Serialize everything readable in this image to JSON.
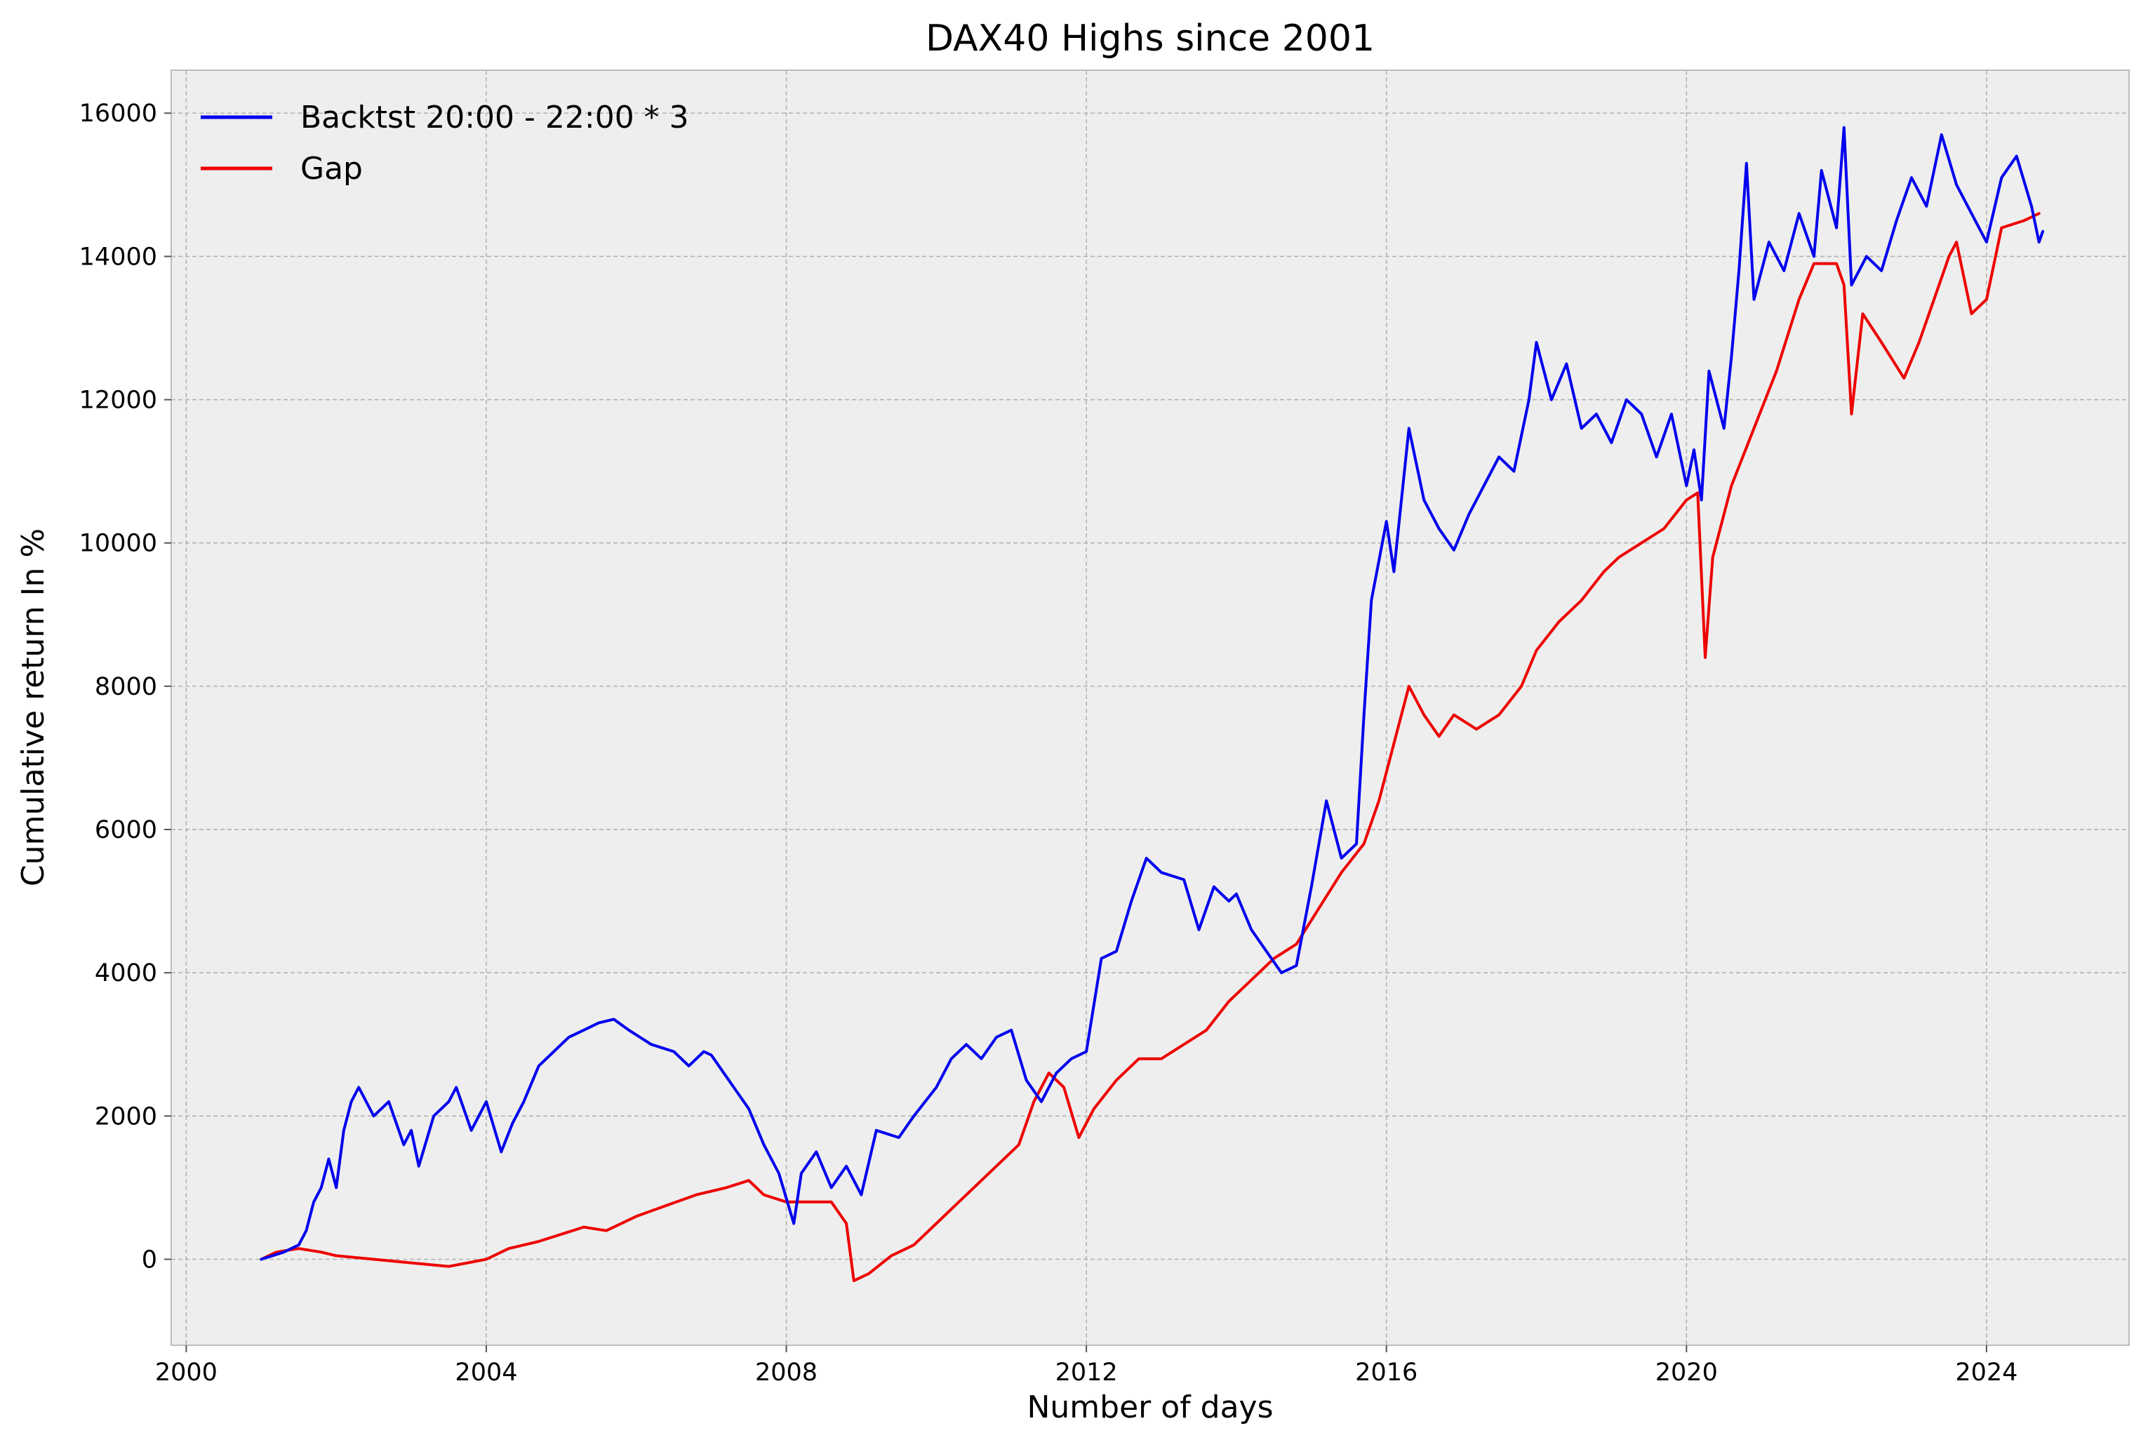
{
  "chart_data": {
    "type": "line",
    "title": "DAX40 Highs since 2001",
    "xlabel": "Number of days",
    "ylabel": "Cumulative return In %",
    "xlim": [
      1999.8,
      2025.9
    ],
    "ylim": [
      -1200,
      16600
    ],
    "x_ticks": [
      2000,
      2004,
      2008,
      2012,
      2016,
      2020,
      2024
    ],
    "x_tick_labels": [
      "2000",
      "2004",
      "2008",
      "2012",
      "2016",
      "2020",
      "2024"
    ],
    "y_ticks": [
      0,
      2000,
      4000,
      6000,
      8000,
      10000,
      12000,
      14000,
      16000
    ],
    "y_tick_labels": [
      "0",
      "2000",
      "4000",
      "6000",
      "8000",
      "10000",
      "12000",
      "14000",
      "16000"
    ],
    "grid": true,
    "legend_position": "top-left",
    "series": [
      {
        "name": "Backtst 20:00 - 22:00 * 3",
        "color": "#0000ee",
        "points": [
          [
            2001.0,
            0
          ],
          [
            2001.3,
            100
          ],
          [
            2001.5,
            200
          ],
          [
            2001.6,
            400
          ],
          [
            2001.7,
            800
          ],
          [
            2001.8,
            1000
          ],
          [
            2001.9,
            1400
          ],
          [
            2002.0,
            1000
          ],
          [
            2002.1,
            1800
          ],
          [
            2002.2,
            2200
          ],
          [
            2002.3,
            2400
          ],
          [
            2002.5,
            2000
          ],
          [
            2002.7,
            2200
          ],
          [
            2002.9,
            1600
          ],
          [
            2003.0,
            1800
          ],
          [
            2003.1,
            1300
          ],
          [
            2003.3,
            2000
          ],
          [
            2003.5,
            2200
          ],
          [
            2003.6,
            2400
          ],
          [
            2003.8,
            1800
          ],
          [
            2004.0,
            2200
          ],
          [
            2004.2,
            1500
          ],
          [
            2004.35,
            1900
          ],
          [
            2004.5,
            2200
          ],
          [
            2004.7,
            2700
          ],
          [
            2004.9,
            2900
          ],
          [
            2005.1,
            3100
          ],
          [
            2005.3,
            3200
          ],
          [
            2005.5,
            3300
          ],
          [
            2005.7,
            3350
          ],
          [
            2005.9,
            3200
          ],
          [
            2006.2,
            3000
          ],
          [
            2006.5,
            2900
          ],
          [
            2006.7,
            2700
          ],
          [
            2006.9,
            2900
          ],
          [
            2007.0,
            2850
          ],
          [
            2007.3,
            2400
          ],
          [
            2007.5,
            2100
          ],
          [
            2007.7,
            1600
          ],
          [
            2007.9,
            1200
          ],
          [
            2008.1,
            500
          ],
          [
            2008.2,
            1200
          ],
          [
            2008.4,
            1500
          ],
          [
            2008.6,
            1000
          ],
          [
            2008.8,
            1300
          ],
          [
            2009.0,
            900
          ],
          [
            2009.2,
            1800
          ],
          [
            2009.5,
            1700
          ],
          [
            2009.7,
            2000
          ],
          [
            2010.0,
            2400
          ],
          [
            2010.2,
            2800
          ],
          [
            2010.4,
            3000
          ],
          [
            2010.6,
            2800
          ],
          [
            2010.8,
            3100
          ],
          [
            2011.0,
            3200
          ],
          [
            2011.2,
            2500
          ],
          [
            2011.4,
            2200
          ],
          [
            2011.6,
            2600
          ],
          [
            2011.8,
            2800
          ],
          [
            2012.0,
            2900
          ],
          [
            2012.2,
            4200
          ],
          [
            2012.4,
            4300
          ],
          [
            2012.6,
            5000
          ],
          [
            2012.8,
            5600
          ],
          [
            2013.0,
            5400
          ],
          [
            2013.3,
            5300
          ],
          [
            2013.5,
            4600
          ],
          [
            2013.7,
            5200
          ],
          [
            2013.9,
            5000
          ],
          [
            2014.0,
            5100
          ],
          [
            2014.2,
            4600
          ],
          [
            2014.4,
            4300
          ],
          [
            2014.6,
            4000
          ],
          [
            2014.8,
            4100
          ],
          [
            2015.0,
            5200
          ],
          [
            2015.2,
            6400
          ],
          [
            2015.4,
            5600
          ],
          [
            2015.6,
            5800
          ],
          [
            2015.7,
            7600
          ],
          [
            2015.8,
            9200
          ],
          [
            2016.0,
            10300
          ],
          [
            2016.1,
            9600
          ],
          [
            2016.3,
            11600
          ],
          [
            2016.5,
            10600
          ],
          [
            2016.7,
            10200
          ],
          [
            2016.9,
            9900
          ],
          [
            2017.1,
            10400
          ],
          [
            2017.3,
            10800
          ],
          [
            2017.5,
            11200
          ],
          [
            2017.7,
            11000
          ],
          [
            2017.9,
            12000
          ],
          [
            2018.0,
            12800
          ],
          [
            2018.2,
            12000
          ],
          [
            2018.4,
            12500
          ],
          [
            2018.6,
            11600
          ],
          [
            2018.8,
            11800
          ],
          [
            2019.0,
            11400
          ],
          [
            2019.2,
            12000
          ],
          [
            2019.4,
            11800
          ],
          [
            2019.6,
            11200
          ],
          [
            2019.8,
            11800
          ],
          [
            2020.0,
            10800
          ],
          [
            2020.1,
            11300
          ],
          [
            2020.2,
            10600
          ],
          [
            2020.3,
            12400
          ],
          [
            2020.5,
            11600
          ],
          [
            2020.6,
            12600
          ],
          [
            2020.7,
            13800
          ],
          [
            2020.8,
            15300
          ],
          [
            2020.9,
            13400
          ],
          [
            2021.1,
            14200
          ],
          [
            2021.3,
            13800
          ],
          [
            2021.5,
            14600
          ],
          [
            2021.7,
            14000
          ],
          [
            2021.8,
            15200
          ],
          [
            2022.0,
            14400
          ],
          [
            2022.1,
            15800
          ],
          [
            2022.2,
            13600
          ],
          [
            2022.4,
            14000
          ],
          [
            2022.6,
            13800
          ],
          [
            2022.8,
            14500
          ],
          [
            2023.0,
            15100
          ],
          [
            2023.2,
            14700
          ],
          [
            2023.4,
            15700
          ],
          [
            2023.6,
            15000
          ],
          [
            2023.8,
            14600
          ],
          [
            2024.0,
            14200
          ],
          [
            2024.2,
            15100
          ],
          [
            2024.4,
            15400
          ],
          [
            2024.6,
            14700
          ],
          [
            2024.7,
            14200
          ],
          [
            2024.75,
            14350
          ]
        ]
      },
      {
        "name": "Gap",
        "color": "#ee0000",
        "points": [
          [
            2001.0,
            0
          ],
          [
            2001.2,
            100
          ],
          [
            2001.5,
            150
          ],
          [
            2001.8,
            100
          ],
          [
            2002.0,
            50
          ],
          [
            2002.5,
            0
          ],
          [
            2003.0,
            -50
          ],
          [
            2003.5,
            -100
          ],
          [
            2004.0,
            0
          ],
          [
            2004.3,
            150
          ],
          [
            2004.7,
            250
          ],
          [
            2005.0,
            350
          ],
          [
            2005.3,
            450
          ],
          [
            2005.6,
            400
          ],
          [
            2006.0,
            600
          ],
          [
            2006.4,
            750
          ],
          [
            2006.8,
            900
          ],
          [
            2007.2,
            1000
          ],
          [
            2007.5,
            1100
          ],
          [
            2007.7,
            900
          ],
          [
            2008.0,
            800
          ],
          [
            2008.3,
            800
          ],
          [
            2008.6,
            800
          ],
          [
            2008.8,
            500
          ],
          [
            2008.9,
            -300
          ],
          [
            2009.1,
            -200
          ],
          [
            2009.4,
            50
          ],
          [
            2009.7,
            200
          ],
          [
            2010.0,
            500
          ],
          [
            2010.3,
            800
          ],
          [
            2010.6,
            1100
          ],
          [
            2010.9,
            1400
          ],
          [
            2011.1,
            1600
          ],
          [
            2011.3,
            2200
          ],
          [
            2011.5,
            2600
          ],
          [
            2011.7,
            2400
          ],
          [
            2011.9,
            1700
          ],
          [
            2012.1,
            2100
          ],
          [
            2012.4,
            2500
          ],
          [
            2012.7,
            2800
          ],
          [
            2013.0,
            2800
          ],
          [
            2013.3,
            3000
          ],
          [
            2013.6,
            3200
          ],
          [
            2013.9,
            3600
          ],
          [
            2014.2,
            3900
          ],
          [
            2014.5,
            4200
          ],
          [
            2014.8,
            4400
          ],
          [
            2015.1,
            4900
          ],
          [
            2015.4,
            5400
          ],
          [
            2015.7,
            5800
          ],
          [
            2015.9,
            6400
          ],
          [
            2016.1,
            7200
          ],
          [
            2016.3,
            8000
          ],
          [
            2016.5,
            7600
          ],
          [
            2016.7,
            7300
          ],
          [
            2016.9,
            7600
          ],
          [
            2017.2,
            7400
          ],
          [
            2017.5,
            7600
          ],
          [
            2017.8,
            8000
          ],
          [
            2018.0,
            8500
          ],
          [
            2018.3,
            8900
          ],
          [
            2018.6,
            9200
          ],
          [
            2018.9,
            9600
          ],
          [
            2019.1,
            9800
          ],
          [
            2019.4,
            10000
          ],
          [
            2019.7,
            10200
          ],
          [
            2020.0,
            10600
          ],
          [
            2020.15,
            10700
          ],
          [
            2020.25,
            8400
          ],
          [
            2020.35,
            9800
          ],
          [
            2020.6,
            10800
          ],
          [
            2020.9,
            11600
          ],
          [
            2021.2,
            12400
          ],
          [
            2021.5,
            13400
          ],
          [
            2021.7,
            13900
          ],
          [
            2022.0,
            13900
          ],
          [
            2022.1,
            13600
          ],
          [
            2022.2,
            11800
          ],
          [
            2022.35,
            13200
          ],
          [
            2022.6,
            12800
          ],
          [
            2022.9,
            12300
          ],
          [
            2023.1,
            12800
          ],
          [
            2023.3,
            13400
          ],
          [
            2023.5,
            14000
          ],
          [
            2023.6,
            14200
          ],
          [
            2023.8,
            13200
          ],
          [
            2024.0,
            13400
          ],
          [
            2024.2,
            14400
          ],
          [
            2024.5,
            14500
          ],
          [
            2024.7,
            14600
          ]
        ]
      }
    ]
  }
}
